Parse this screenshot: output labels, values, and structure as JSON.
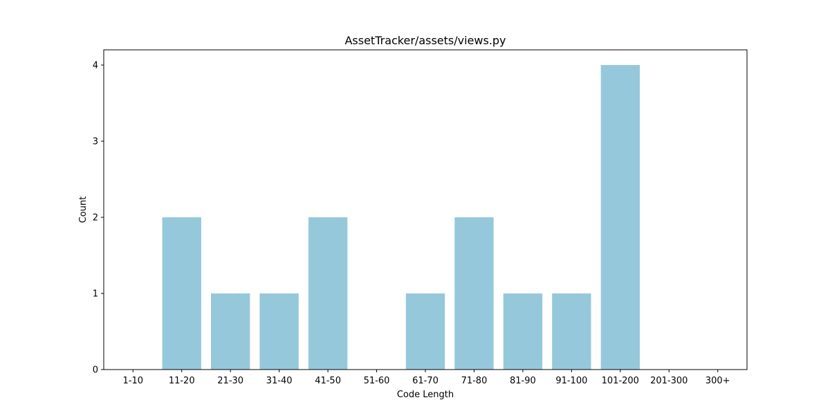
{
  "chart_data": {
    "type": "bar",
    "title": "AssetTracker/assets/views.py",
    "xlabel": "Code Length",
    "ylabel": "Count",
    "categories": [
      "1-10",
      "11-20",
      "21-30",
      "31-40",
      "41-50",
      "51-60",
      "61-70",
      "71-80",
      "81-90",
      "91-100",
      "101-200",
      "201-300",
      "300+"
    ],
    "values": [
      0,
      2,
      1,
      1,
      2,
      0,
      1,
      2,
      1,
      1,
      4,
      0,
      0
    ],
    "yticks": [
      0,
      1,
      2,
      3,
      4
    ],
    "ylim": [
      0,
      4.2
    ],
    "grid": false,
    "bar_color": "#96c8dc"
  }
}
